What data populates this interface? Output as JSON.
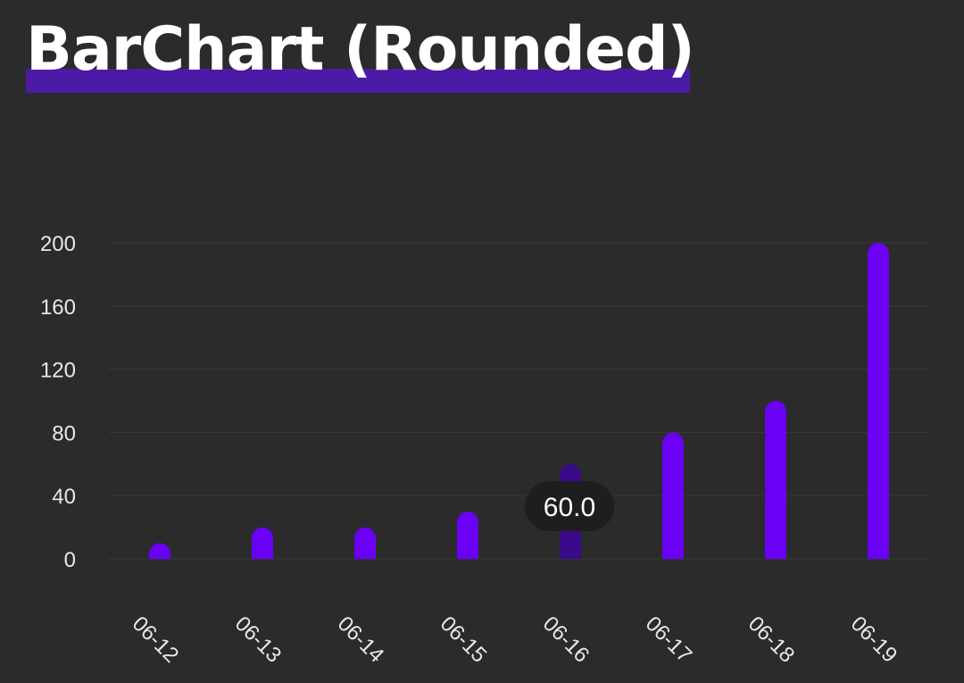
{
  "page": {
    "title": "BarChart (Rounded)"
  },
  "colors": {
    "background": "#2b2b2b",
    "bar": "#6a00f4",
    "bar_selected": "#3a0a8a",
    "title_highlight": "#4b1aa6",
    "grid": "#3a3a3a",
    "tooltip_bg": "#1e1e1e",
    "text": "#e8e8e8"
  },
  "chart_data": {
    "type": "bar",
    "title": "BarChart (Rounded)",
    "xlabel": "",
    "ylabel": "",
    "categories": [
      "06-12",
      "06-13",
      "06-14",
      "06-15",
      "06-16",
      "06-17",
      "06-18",
      "06-19"
    ],
    "values": [
      10,
      20,
      20,
      30,
      60,
      80,
      100,
      200
    ],
    "ylim": [
      0,
      200
    ],
    "yticks": [
      "0",
      "40",
      "80",
      "120",
      "160",
      "200"
    ],
    "grid": true,
    "bar_style": "rounded",
    "selected_index": 4,
    "tooltip": "60.0"
  }
}
